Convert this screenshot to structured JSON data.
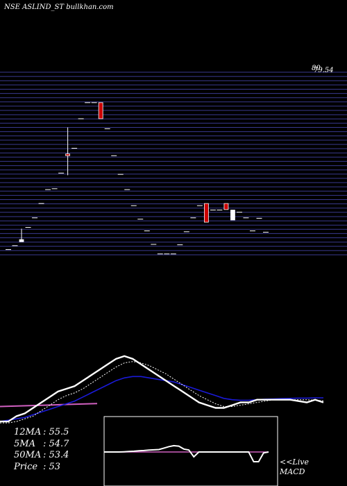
{
  "header": {
    "title": "NSE ASLIND_ST bullkhan.com"
  },
  "chart_data": {
    "type": "candlestick",
    "price_axis": {
      "top_label": "80",
      "top_value": "79.54",
      "min": 38,
      "max": 80
    },
    "candles": [
      {
        "o": 39.2,
        "h": 39.2,
        "l": 39.2,
        "c": 39.2
      },
      {
        "o": 40.1,
        "h": 40.1,
        "l": 40.1,
        "c": 40.1
      },
      {
        "o": 41.0,
        "h": 44.0,
        "l": 41.0,
        "c": 41.5
      },
      {
        "o": 44.3,
        "h": 44.3,
        "l": 44.3,
        "c": 44.3
      },
      {
        "o": 46.5,
        "h": 46.5,
        "l": 46.5,
        "c": 46.5
      },
      {
        "o": 49.8,
        "h": 49.8,
        "l": 49.8,
        "c": 49.8
      },
      {
        "o": 53.0,
        "h": 53.0,
        "l": 53.0,
        "c": 53.0
      },
      {
        "o": 53.2,
        "h": 53.2,
        "l": 53.2,
        "c": 53.2
      },
      {
        "o": 56.8,
        "h": 56.8,
        "l": 56.8,
        "c": 56.8
      },
      {
        "o": 61.2,
        "h": 67.3,
        "l": 56.3,
        "c": 60.8
      },
      {
        "o": 62.5,
        "h": 62.5,
        "l": 62.5,
        "c": 62.5
      },
      {
        "o": 69.3,
        "h": 69.3,
        "l": 69.3,
        "c": 69.3
      },
      {
        "o": 73.0,
        "h": 73.0,
        "l": 73.0,
        "c": 73.0
      },
      {
        "o": 73.0,
        "h": 73.0,
        "l": 73.0,
        "c": 73.0
      },
      {
        "o": 73.0,
        "h": 73.0,
        "l": 69.3,
        "c": 69.3
      },
      {
        "o": 67.0,
        "h": 67.0,
        "l": 67.0,
        "c": 67.0
      },
      {
        "o": 60.8,
        "h": 60.8,
        "l": 60.8,
        "c": 60.8
      },
      {
        "o": 56.5,
        "h": 56.5,
        "l": 56.5,
        "c": 56.5
      },
      {
        "o": 53.0,
        "h": 53.0,
        "l": 53.0,
        "c": 53.0
      },
      {
        "o": 49.3,
        "h": 49.3,
        "l": 49.3,
        "c": 49.3
      },
      {
        "o": 46.2,
        "h": 46.2,
        "l": 46.2,
        "c": 46.2
      },
      {
        "o": 43.5,
        "h": 43.5,
        "l": 43.5,
        "c": 43.5
      },
      {
        "o": 40.4,
        "h": 40.4,
        "l": 40.4,
        "c": 40.4
      },
      {
        "o": 38.2,
        "h": 38.2,
        "l": 38.2,
        "c": 38.2
      },
      {
        "o": 38.2,
        "h": 38.2,
        "l": 38.2,
        "c": 38.2
      },
      {
        "o": 38.2,
        "h": 38.2,
        "l": 38.2,
        "c": 38.2
      },
      {
        "o": 40.3,
        "h": 40.3,
        "l": 40.3,
        "c": 40.3
      },
      {
        "o": 43.3,
        "h": 43.3,
        "l": 43.3,
        "c": 43.3
      },
      {
        "o": 46.5,
        "h": 46.5,
        "l": 46.5,
        "c": 46.5
      },
      {
        "o": 49.3,
        "h": 49.3,
        "l": 49.3,
        "c": 49.3
      },
      {
        "o": 49.8,
        "h": 49.8,
        "l": 45.5,
        "c": 45.5
      },
      {
        "o": 48.3,
        "h": 48.3,
        "l": 48.3,
        "c": 48.3
      },
      {
        "o": 48.3,
        "h": 48.3,
        "l": 48.3,
        "c": 48.3
      },
      {
        "o": 49.8,
        "h": 49.8,
        "l": 48.4,
        "c": 48.4
      },
      {
        "o": 46.0,
        "h": 48.3,
        "l": 46.0,
        "c": 48.3
      },
      {
        "o": 47.8,
        "h": 47.8,
        "l": 47.8,
        "c": 47.8
      },
      {
        "o": 46.5,
        "h": 46.5,
        "l": 46.5,
        "c": 46.5
      },
      {
        "o": 43.5,
        "h": 43.5,
        "l": 43.5,
        "c": 43.5
      },
      {
        "o": 46.4,
        "h": 46.4,
        "l": 46.4,
        "c": 46.4
      },
      {
        "o": 43.2,
        "h": 43.2,
        "l": 43.2,
        "c": 43.2
      }
    ],
    "moving_averages_panel": {
      "price_line": [
        46,
        46,
        48,
        49,
        51,
        53,
        55,
        57,
        58,
        59,
        61,
        63,
        65,
        67,
        69,
        70,
        69,
        67,
        65,
        63,
        61,
        59,
        57,
        55,
        53,
        52,
        51,
        51,
        52,
        53,
        53,
        54,
        54,
        54,
        54,
        54,
        53.5,
        53,
        54,
        53
      ],
      "ma_short": [
        45.5,
        45.5,
        46,
        47,
        48,
        50,
        52,
        54,
        55.5,
        56.5,
        58,
        60,
        62,
        64,
        66,
        67.5,
        68,
        67.5,
        66.5,
        65,
        63.5,
        61.5,
        59.5,
        57.5,
        55.5,
        54,
        52.5,
        51.5,
        51.5,
        52,
        52.5,
        53,
        53.5,
        54,
        54,
        54,
        54,
        54,
        53.8,
        53.6
      ],
      "ma_medium": [
        46,
        46.5,
        47,
        47.5,
        48.5,
        49.5,
        50.5,
        51.5,
        52.5,
        53.5,
        55,
        56.5,
        58,
        59.5,
        61,
        62,
        62.5,
        62.5,
        62,
        61.5,
        61,
        60.5,
        59.5,
        58.5,
        57.5,
        56.5,
        55.5,
        54.5,
        54,
        53.8,
        53.8,
        54,
        54.2,
        54.3,
        54.4,
        54.5,
        54.6,
        54.6,
        54.7,
        54.7
      ],
      "ma_long": [
        51.5,
        51.6,
        51.7,
        51.8,
        51.9,
        52,
        52.1,
        52.2,
        52.3,
        52.4,
        52.5,
        52.6
      ]
    },
    "macd_panel": {
      "macd": [
        0,
        0,
        0,
        0,
        0.02,
        0.05,
        0.08,
        0.12,
        0.15,
        0.2,
        0.22,
        0.25,
        0.4,
        0.55,
        0.65,
        0.6,
        0.3,
        0.2,
        -0.5,
        0,
        0,
        0,
        0,
        0,
        0,
        0,
        0,
        0,
        0,
        0,
        -1.0,
        -1.0,
        -0.1,
        0
      ],
      "signal": [
        0,
        0,
        0,
        0,
        0,
        0,
        0,
        0,
        0,
        0,
        0,
        0,
        0,
        0,
        0,
        0,
        0,
        0,
        0,
        0,
        0,
        0,
        0,
        0,
        0,
        0,
        0,
        0,
        0,
        0,
        0,
        0,
        0,
        0
      ]
    }
  },
  "indicators": {
    "ma12_label": "12MA",
    "ma12_value": ": 55.5",
    "ma5_label": "5MA",
    "ma5_value": ": 54.7",
    "ma50_label": "50MA",
    "ma50_value": ": 53.4",
    "price_label": "Price",
    "price_value": " : 53"
  },
  "macd_label": {
    "line1": "<<Live",
    "line2": "MACD"
  },
  "colors": {
    "background": "#000000",
    "grid": "#3a3a90",
    "down_candle": "#cc0000",
    "up_candle": "#ffffff",
    "ma_short": "#ffffff",
    "ma_long_blue": "#1a1ad8",
    "ma_pink": "#d060c0"
  }
}
